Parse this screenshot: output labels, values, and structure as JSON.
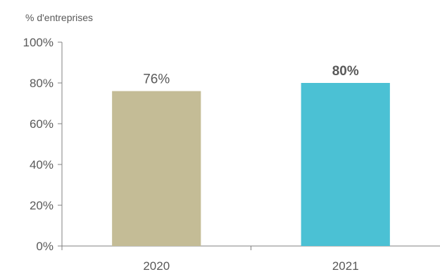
{
  "chart_data": {
    "type": "bar",
    "title": "",
    "xlabel": "",
    "ylabel": "% d'entreprises",
    "categories": [
      "2020",
      "2021"
    ],
    "values": [
      76,
      80
    ],
    "data_labels": [
      "76%",
      "80%"
    ],
    "data_label_bold": [
      false,
      true
    ],
    "colors": [
      "#C4BC96",
      "#4BC1D4"
    ],
    "ylim": [
      0,
      100
    ],
    "yticks": [
      0,
      20,
      40,
      60,
      80,
      100
    ],
    "ytick_labels": [
      "0%",
      "20%",
      "40%",
      "60%",
      "80%",
      "100%"
    ],
    "grid": false,
    "legend": "none"
  }
}
